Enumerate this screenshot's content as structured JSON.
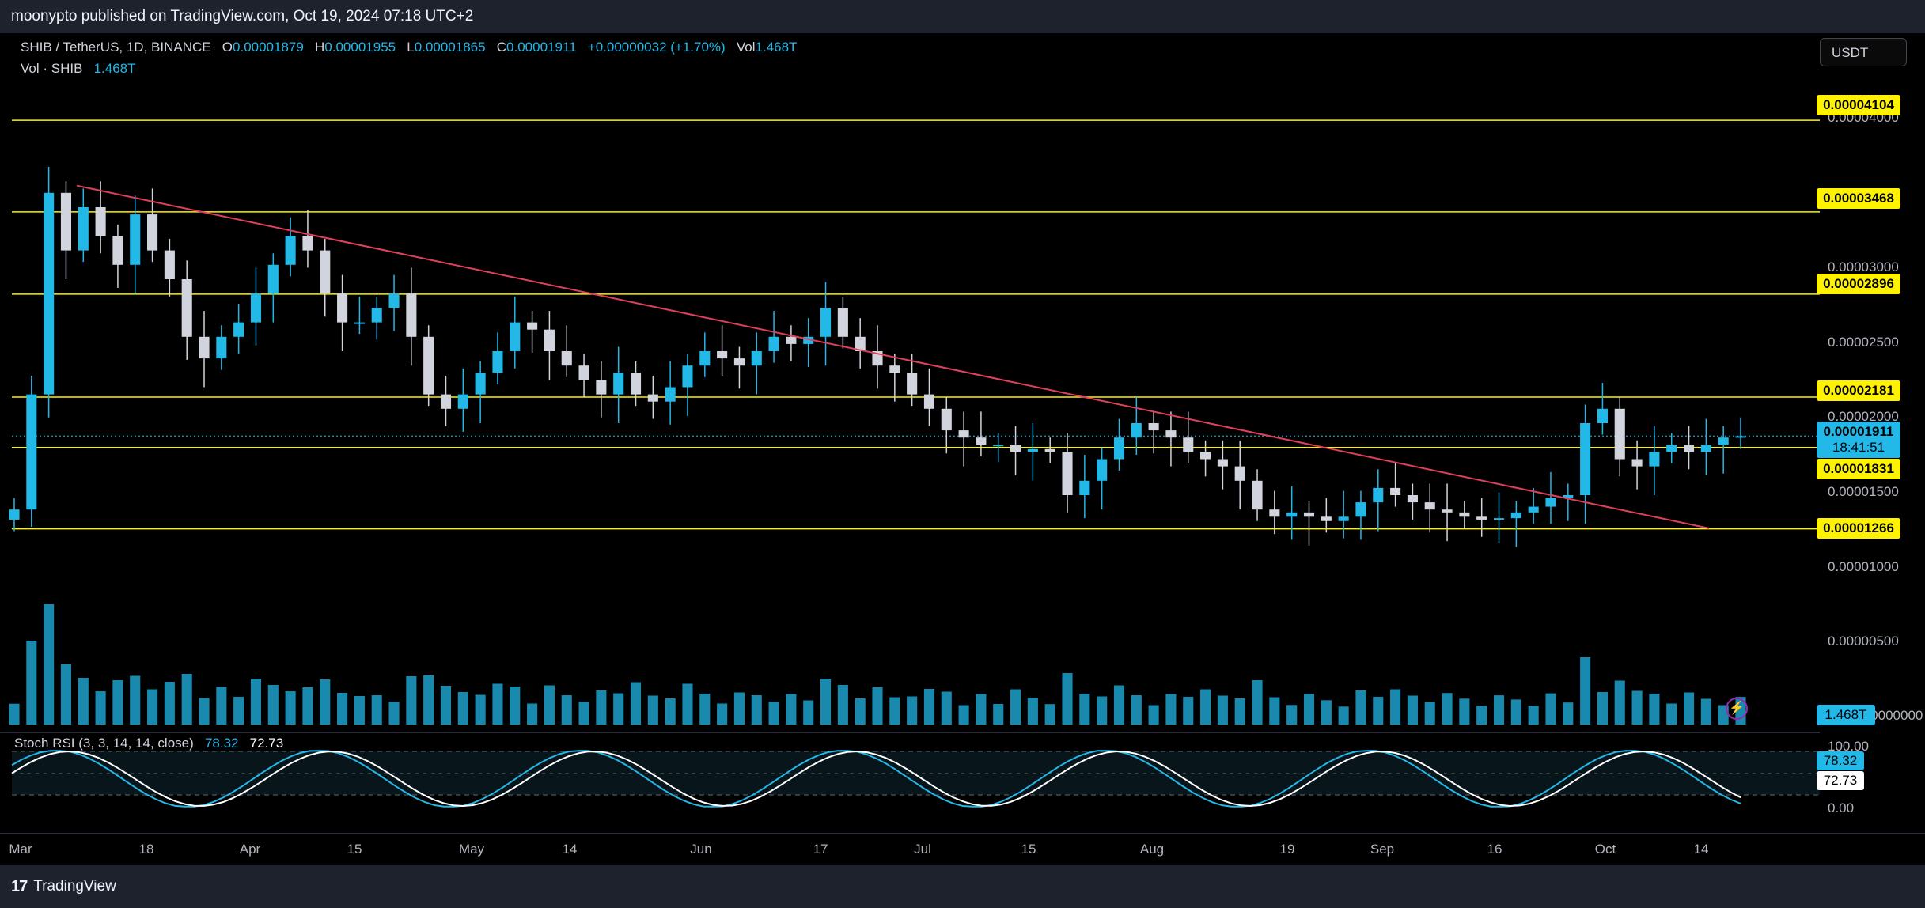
{
  "header": {
    "published": "moonypto published on TradingView.com, Oct 19, 2024 07:18 UTC+2"
  },
  "legend": {
    "symbol": "SHIB / TetherUS, 1D, BINANCE",
    "open_label": "O",
    "open": "0.00001879",
    "high_label": "H",
    "high": "0.00001955",
    "low_label": "L",
    "low": "0.00001865",
    "close_label": "C",
    "close": "0.00001911",
    "change": "+0.00000032 (+1.70%)",
    "vol_label": "Vol",
    "vol": "1.468T",
    "vol_row_label": "Vol · SHIB",
    "vol_row_value": "1.468T"
  },
  "currency_button": "USDT",
  "price_axis": {
    "ticks": [
      "0.00004000",
      "0.00003000",
      "0.00002500",
      "0.00002000",
      "0.00001500",
      "0.00001000",
      "0.00000500",
      "0.0000000"
    ],
    "levels": [
      "0.00004104",
      "0.00003468",
      "0.00002896",
      "0.00002181",
      "0.00001831",
      "0.00001266"
    ],
    "current_price": "0.00001911",
    "countdown": "18:41:51",
    "volume_tag": "1.468T",
    "colors": {
      "level": "#fff200",
      "current": "#22b8e8",
      "trendline": "#e0405c",
      "up": "#22b8e8",
      "down": "#d1d4dc"
    }
  },
  "time_axis": [
    "Mar",
    "18",
    "Apr",
    "15",
    "May",
    "14",
    "Jun",
    "17",
    "Jul",
    "15",
    "Aug",
    "19",
    "Sep",
    "16",
    "Oct",
    "14"
  ],
  "rsi": {
    "title": "Stoch RSI (3, 3, 14, 14, close)",
    "k_value": "78.32",
    "d_value": "72.73",
    "axis_high": "100.00",
    "axis_low": "0.00",
    "colors": {
      "k": "#22b8e8",
      "d": "#ffffff"
    }
  },
  "footer": {
    "brand": "TradingView"
  },
  "chart_data": {
    "type": "candlestick",
    "title": "SHIB / TetherUS, 1D, BINANCE",
    "x_start": "2024-03-01",
    "x_end": "2024-10-19",
    "horizontal_levels": [
      4.104e-05,
      3.468e-05,
      2.896e-05,
      2.181e-05,
      1.831e-05,
      1.266e-05
    ],
    "trendline": [
      {
        "x": "2024-03-06",
        "y": 3.65e-05
      },
      {
        "x": "2024-10-15",
        "y": 1.27e-05
      }
    ],
    "close_series": [
      1.4,
      2.2,
      3.6,
      3.2,
      3.5,
      3.3,
      3.1,
      3.45,
      3.2,
      3.0,
      2.6,
      2.45,
      2.6,
      2.7,
      2.9,
      3.1,
      3.3,
      3.2,
      2.9,
      2.7,
      2.7,
      2.8,
      2.9,
      2.6,
      2.2,
      2.1,
      2.2,
      2.35,
      2.5,
      2.7,
      2.65,
      2.5,
      2.4,
      2.3,
      2.2,
      2.35,
      2.2,
      2.15,
      2.25,
      2.4,
      2.5,
      2.45,
      2.4,
      2.5,
      2.6,
      2.55,
      2.6,
      2.8,
      2.6,
      2.5,
      2.4,
      2.35,
      2.2,
      2.1,
      1.95,
      1.9,
      1.85,
      1.85,
      1.8,
      1.82,
      1.8,
      1.5,
      1.6,
      1.75,
      1.9,
      2.0,
      1.95,
      1.9,
      1.8,
      1.75,
      1.7,
      1.6,
      1.4,
      1.35,
      1.38,
      1.35,
      1.32,
      1.35,
      1.45,
      1.55,
      1.5,
      1.45,
      1.4,
      1.38,
      1.35,
      1.33,
      1.34,
      1.38,
      1.42,
      1.48,
      1.5,
      2.0,
      2.1,
      1.75,
      1.7,
      1.8,
      1.85,
      1.8,
      1.85,
      1.9,
      1.91
    ]
  }
}
